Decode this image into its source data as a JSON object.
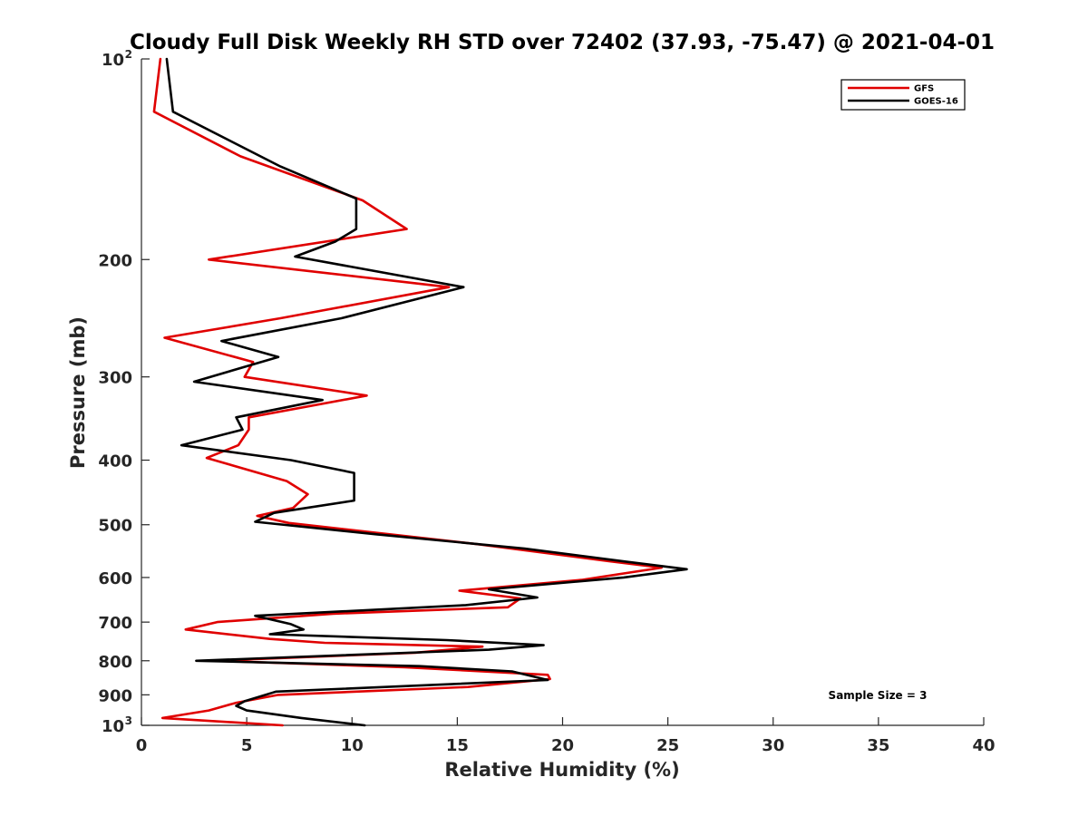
{
  "chart_data": {
    "type": "line",
    "title": "Cloudy Full Disk Weekly RH STD over 72402 (37.93, -75.47) @ 2021-04-01",
    "xlabel": "Relative Humidity (%)",
    "ylabel": "Pressure (mb)",
    "xlim": [
      0,
      40
    ],
    "ylim": [
      100,
      1000
    ],
    "y_scale": "log",
    "y_reversed": true,
    "grid": false,
    "x_ticks": [
      {
        "value": 0,
        "label": "0"
      },
      {
        "value": 5,
        "label": "5"
      },
      {
        "value": 10,
        "label": "10"
      },
      {
        "value": 15,
        "label": "15"
      },
      {
        "value": 20,
        "label": "20"
      },
      {
        "value": 25,
        "label": "25"
      },
      {
        "value": 30,
        "label": "30"
      },
      {
        "value": 35,
        "label": "35"
      },
      {
        "value": 40,
        "label": "40"
      }
    ],
    "y_ticks": [
      {
        "value": 100,
        "base": "10",
        "exp": "2"
      },
      {
        "value": 200,
        "base": "200",
        "exp": ""
      },
      {
        "value": 300,
        "base": "300",
        "exp": ""
      },
      {
        "value": 400,
        "base": "400",
        "exp": ""
      },
      {
        "value": 500,
        "base": "500",
        "exp": ""
      },
      {
        "value": 600,
        "base": "600",
        "exp": ""
      },
      {
        "value": 700,
        "base": "700",
        "exp": ""
      },
      {
        "value": 800,
        "base": "800",
        "exp": ""
      },
      {
        "value": 900,
        "base": "900",
        "exp": ""
      },
      {
        "value": 1000,
        "base": "10",
        "exp": "3"
      }
    ],
    "legend_position": "top-right",
    "annotation": "Sample Size = 3",
    "series": [
      {
        "name": "GFS",
        "color": "#e00000",
        "points": [
          [
            0.9,
            100
          ],
          [
            0.6,
            120
          ],
          [
            4.7,
            140
          ],
          [
            10.5,
            163
          ],
          [
            12.6,
            180
          ],
          [
            3.2,
            200
          ],
          [
            14.6,
            220
          ],
          [
            6.6,
            245
          ],
          [
            1.1,
            262
          ],
          [
            5.3,
            285
          ],
          [
            4.9,
            300
          ],
          [
            10.7,
            320
          ],
          [
            5.1,
            345
          ],
          [
            5.1,
            360
          ],
          [
            4.6,
            380
          ],
          [
            3.1,
            397
          ],
          [
            6.9,
            430
          ],
          [
            7.9,
            450
          ],
          [
            7.2,
            472
          ],
          [
            5.5,
            485
          ],
          [
            7.0,
            497
          ],
          [
            16.0,
            535
          ],
          [
            22.2,
            567
          ],
          [
            24.7,
            580
          ],
          [
            20.9,
            605
          ],
          [
            15.1,
            628
          ],
          [
            18.0,
            645
          ],
          [
            17.4,
            665
          ],
          [
            9.1,
            680
          ],
          [
            3.6,
            700
          ],
          [
            2.1,
            718
          ],
          [
            6.1,
            742
          ],
          [
            8.7,
            752
          ],
          [
            16.2,
            762
          ],
          [
            13.0,
            778
          ],
          [
            3.5,
            800
          ],
          [
            12.5,
            818
          ],
          [
            19.3,
            840
          ],
          [
            19.4,
            852
          ],
          [
            15.5,
            876
          ],
          [
            6.5,
            900
          ],
          [
            4.5,
            925
          ],
          [
            3.2,
            950
          ],
          [
            1.0,
            975
          ],
          [
            6.7,
            1000
          ]
        ]
      },
      {
        "name": "GOES-16",
        "color": "#000000",
        "points": [
          [
            1.2,
            100
          ],
          [
            1.5,
            120
          ],
          [
            6.6,
            145
          ],
          [
            10.2,
            162
          ],
          [
            10.2,
            180
          ],
          [
            9.2,
            188
          ],
          [
            7.3,
            198
          ],
          [
            15.3,
            220
          ],
          [
            9.5,
            245
          ],
          [
            3.8,
            265
          ],
          [
            6.5,
            280
          ],
          [
            2.5,
            305
          ],
          [
            8.6,
            325
          ],
          [
            4.5,
            345
          ],
          [
            4.8,
            360
          ],
          [
            1.9,
            380
          ],
          [
            7.1,
            400
          ],
          [
            10.1,
            418
          ],
          [
            10.1,
            460
          ],
          [
            6.3,
            480
          ],
          [
            5.4,
            495
          ],
          [
            11.2,
            517
          ],
          [
            18.2,
            543
          ],
          [
            23.0,
            568
          ],
          [
            25.9,
            583
          ],
          [
            22.9,
            600
          ],
          [
            16.5,
            625
          ],
          [
            18.8,
            643
          ],
          [
            15.4,
            660
          ],
          [
            5.4,
            685
          ],
          [
            7.1,
            705
          ],
          [
            7.7,
            718
          ],
          [
            6.1,
            730
          ],
          [
            14.5,
            745
          ],
          [
            19.1,
            758
          ],
          [
            16.5,
            770
          ],
          [
            2.6,
            800
          ],
          [
            13.2,
            815
          ],
          [
            17.6,
            830
          ],
          [
            19.3,
            855
          ],
          [
            6.4,
            890
          ],
          [
            4.9,
            920
          ],
          [
            4.5,
            935
          ],
          [
            5.0,
            950
          ],
          [
            7.6,
            975
          ],
          [
            10.6,
            1000
          ]
        ]
      }
    ]
  }
}
